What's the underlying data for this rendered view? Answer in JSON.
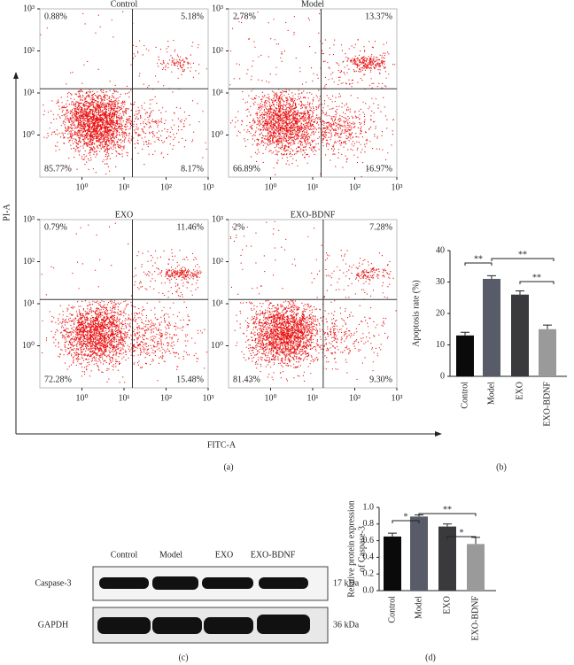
{
  "chart_data": [
    {
      "type": "flow",
      "title": "Control",
      "xlim": [
        0.1,
        1000
      ],
      "ylim": [
        0.1,
        1000
      ],
      "log_scale": true,
      "color": "#e8100f",
      "xticks": [
        {
          "value": 1,
          "label": "10⁰"
        },
        {
          "value": 10,
          "label": "10¹"
        },
        {
          "value": 100,
          "label": "10²"
        },
        {
          "value": 1000,
          "label": "10³"
        }
      ],
      "yticks": [
        {
          "value": 1,
          "label": "10⁰"
        },
        {
          "value": 10,
          "label": "10¹"
        },
        {
          "value": 100,
          "label": "10²"
        },
        {
          "value": 1000,
          "label": "10³"
        }
      ],
      "quadrants": [
        {
          "value": 0.88,
          "label": "0.88%"
        },
        {
          "value": 5.18,
          "label": "5.18%"
        },
        {
          "value": 85.77,
          "label": "85.77%"
        },
        {
          "value": 8.17,
          "label": "8.17%"
        }
      ]
    },
    {
      "type": "flow",
      "title": "Model",
      "xlim": [
        0.1,
        1000
      ],
      "ylim": [
        0.1,
        1000
      ],
      "log_scale": true,
      "color": "#e8100f",
      "xticks": [
        {
          "value": 1,
          "label": "10⁰"
        },
        {
          "value": 10,
          "label": "10¹"
        },
        {
          "value": 100,
          "label": "10²"
        },
        {
          "value": 1000,
          "label": "10³"
        }
      ],
      "yticks": [
        {
          "value": 1,
          "label": "10⁰"
        },
        {
          "value": 10,
          "label": "10¹"
        },
        {
          "value": 100,
          "label": "10²"
        },
        {
          "value": 1000,
          "label": "10³"
        }
      ],
      "quadrants": [
        {
          "value": 2.78,
          "label": "2.78%"
        },
        {
          "value": 13.37,
          "label": "13.37%"
        },
        {
          "value": 66.89,
          "label": "66.89%"
        },
        {
          "value": 16.97,
          "label": "16.97%"
        }
      ]
    },
    {
      "type": "flow",
      "title": "EXO",
      "xlim": [
        0.1,
        1000
      ],
      "ylim": [
        0.1,
        1000
      ],
      "log_scale": true,
      "color": "#e8100f",
      "xticks": [
        {
          "value": 1,
          "label": "10⁰"
        },
        {
          "value": 10,
          "label": "10¹"
        },
        {
          "value": 100,
          "label": "10²"
        },
        {
          "value": 1000,
          "label": "10³"
        }
      ],
      "yticks": [
        {
          "value": 1,
          "label": "10⁰"
        },
        {
          "value": 10,
          "label": "10¹"
        },
        {
          "value": 100,
          "label": "10²"
        },
        {
          "value": 1000,
          "label": "10³"
        }
      ],
      "quadrants": [
        {
          "value": 0.79,
          "label": "0.79%"
        },
        {
          "value": 11.46,
          "label": "11.46%"
        },
        {
          "value": 72.28,
          "label": "72.28%"
        },
        {
          "value": 15.48,
          "label": "15.48%"
        }
      ]
    },
    {
      "type": "flow",
      "title": "EXO-BDNF",
      "xlim": [
        0.1,
        1000
      ],
      "ylim": [
        0.1,
        1000
      ],
      "log_scale": true,
      "color": "#e8100f",
      "xticks": [
        {
          "value": 1,
          "label": "10⁰"
        },
        {
          "value": 10,
          "label": "10¹"
        },
        {
          "value": 100,
          "label": "10²"
        },
        {
          "value": 1000,
          "label": "10³"
        }
      ],
      "yticks": [
        {
          "value": 1,
          "label": "10⁰"
        },
        {
          "value": 10,
          "label": "10¹"
        },
        {
          "value": 100,
          "label": "10²"
        },
        {
          "value": 1000,
          "label": "10³"
        }
      ],
      "quadrants": [
        {
          "value": 2,
          "label": "2%"
        },
        {
          "value": 7.28,
          "label": "7.28%"
        },
        {
          "value": 81.43,
          "label": "81.43%"
        },
        {
          "value": 9.3,
          "label": "9.30%"
        }
      ]
    },
    {
      "type": "bar",
      "ylabel": [
        "Apoptosis rate (%)"
      ],
      "categories": [
        "Control",
        "Model",
        "EXO",
        "EXO-BDNF"
      ],
      "values": [
        13,
        31,
        26,
        15
      ],
      "errors": [
        1,
        1,
        1.2,
        1.3
      ],
      "colors": [
        "#0a0a0a",
        "#585c68",
        "#3a3a3c",
        "#9a9a9a"
      ],
      "ylim": [
        0,
        40
      ],
      "yticks": [
        0,
        10,
        20,
        30,
        40
      ],
      "annotations": [
        "**",
        "**",
        "**"
      ]
    },
    {
      "type": "bar",
      "ylabel": [
        "Relative protein expression",
        "of Caspase-3"
      ],
      "categories": [
        "Control",
        "Model",
        "EXO",
        "EXO-BDNF"
      ],
      "values": [
        0.65,
        0.89,
        0.77,
        0.56
      ],
      "errors": [
        0.04,
        0.02,
        0.03,
        0.08
      ],
      "colors": [
        "#0a0a0a",
        "#585c68",
        "#3a3a3c",
        "#9a9a9a"
      ],
      "ylim": [
        0,
        1
      ],
      "yticks": [
        {
          "value": 0,
          "label": "0.0"
        },
        0.2,
        0.4,
        0.6,
        0.8,
        {
          "value": 1,
          "label": "1.0"
        }
      ],
      "annotations": [
        "*",
        "**",
        "*"
      ]
    }
  ],
  "flow_axes": {
    "ylabel": "PI-A",
    "xlabel": "FITC-A"
  },
  "blot": {
    "lanes": [
      "Control",
      "Model",
      "EXO",
      "EXO-BDNF"
    ],
    "rows": [
      {
        "protein": "Caspase-3",
        "size": "17 kDa"
      },
      {
        "protein": "GAPDH",
        "size": "36 kDa"
      }
    ]
  },
  "panel_labels": [
    "(a)",
    "(b)",
    "(c)",
    "(d)"
  ]
}
